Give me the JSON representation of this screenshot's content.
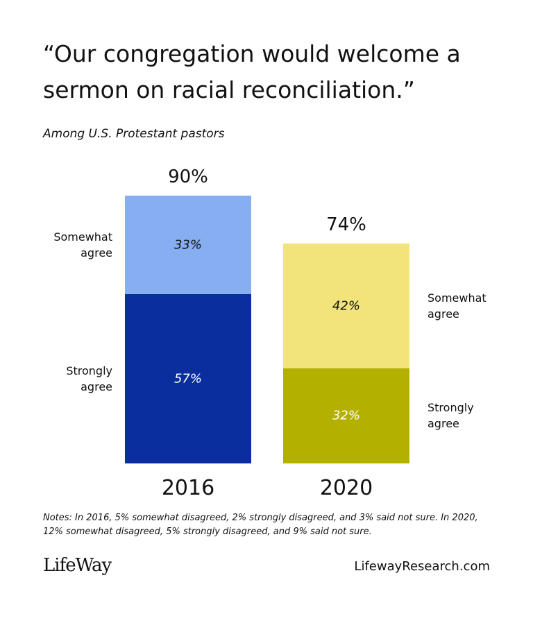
{
  "chart_data": {
    "type": "stacked_bar",
    "title": "“Our congregation would welcome a sermon on racial reconciliation.”",
    "subtitle": "Among U.S. Protestant pastors",
    "categories": [
      "2016",
      "2020"
    ],
    "totals": [
      90,
      74
    ],
    "total_labels": [
      "90%",
      "74%"
    ],
    "series": [
      {
        "name": "Strongly agree",
        "colors": [
          "#0a2e9e",
          "#b4b000"
        ],
        "label_color": "#ffffff",
        "values": [
          57,
          32
        ],
        "value_labels": [
          "57%",
          "32%"
        ]
      },
      {
        "name": "Somewhat agree",
        "colors": [
          "#86aef0",
          "#f2e47a"
        ],
        "label_color": "#111111",
        "values": [
          33,
          42
        ],
        "value_labels": [
          "33%",
          "42%"
        ]
      }
    ],
    "notes": "Notes: In 2016, 5% somewhat disagreed, 2% strongly disagreed, and 3% said not sure. In 2020, 12% somewhat disagreed, 5% strongly disagreed, and 9% said not sure.",
    "logo": "LifeWay",
    "source": "LifewayResearch.com"
  }
}
